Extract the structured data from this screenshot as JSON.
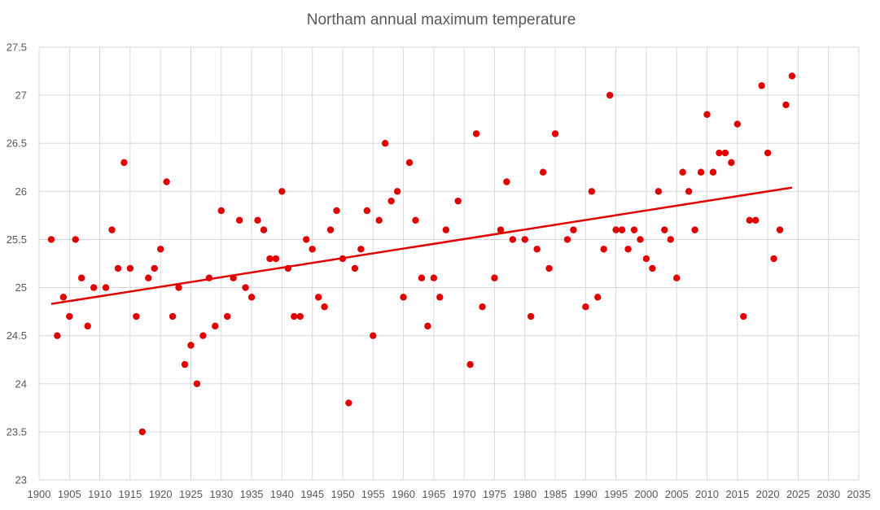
{
  "chart_data": {
    "type": "scatter",
    "title": "Northam annual maximum temperature",
    "xlabel": "",
    "ylabel": "",
    "xlim": [
      1900,
      2035
    ],
    "ylim": [
      23,
      27.5
    ],
    "x_ticks": [
      1900,
      1905,
      1910,
      1915,
      1920,
      1925,
      1930,
      1935,
      1940,
      1945,
      1950,
      1955,
      1960,
      1965,
      1970,
      1975,
      1980,
      1985,
      1990,
      1995,
      2000,
      2005,
      2010,
      2015,
      2020,
      2025,
      2030,
      2035
    ],
    "y_ticks": [
      23,
      23.5,
      24,
      24.5,
      25,
      25.5,
      26,
      26.5,
      27,
      27.5
    ],
    "grid": true,
    "legend": false,
    "point_color": "#e00000",
    "trendline": {
      "type": "linear",
      "color": "#e00000",
      "x": [
        1902,
        2024
      ],
      "y": [
        24.83,
        26.04
      ]
    },
    "series": [
      {
        "x": [
          1902,
          1903,
          1904,
          1905,
          1906,
          1907,
          1908,
          1909,
          1911,
          1912,
          1913,
          1914,
          1915,
          1916,
          1917,
          1918,
          1919,
          1920,
          1921,
          1922,
          1923,
          1924,
          1925,
          1926,
          1927,
          1928,
          1929,
          1930,
          1931,
          1932,
          1933,
          1934,
          1935,
          1936,
          1937,
          1938,
          1939,
          1940,
          1941,
          1942,
          1943,
          1944,
          1945,
          1946,
          1947,
          1948,
          1949,
          1950,
          1951,
          1952,
          1953,
          1954,
          1955,
          1956,
          1957,
          1958,
          1959,
          1960,
          1961,
          1962,
          1963,
          1964,
          1965,
          1966,
          1967,
          1969,
          1971,
          1972,
          1973,
          1975,
          1976,
          1977,
          1978,
          1980,
          1981,
          1982,
          1983,
          1984,
          1985,
          1987,
          1988,
          1990,
          1991,
          1992,
          1993,
          1994,
          1995,
          1996,
          1997,
          1998,
          1999,
          2000,
          2001,
          2002,
          2003,
          2004,
          2005,
          2006,
          2007,
          2008,
          2009,
          2010,
          2011,
          2012,
          2013,
          2014,
          2015,
          2016,
          2017,
          2018,
          2019,
          2020,
          2021,
          2022,
          2023,
          2024
        ],
        "y": [
          25.5,
          24.5,
          24.9,
          24.7,
          25.5,
          25.1,
          24.6,
          25.0,
          25.0,
          25.6,
          25.2,
          26.3,
          25.2,
          24.7,
          23.5,
          25.1,
          25.2,
          25.4,
          26.1,
          24.7,
          25.0,
          24.2,
          24.4,
          24.0,
          24.5,
          25.1,
          24.6,
          25.8,
          24.7,
          25.1,
          25.7,
          25.0,
          24.9,
          25.7,
          25.6,
          25.3,
          25.3,
          26.0,
          25.2,
          24.7,
          24.7,
          25.5,
          25.4,
          24.9,
          24.8,
          25.6,
          25.8,
          25.3,
          23.8,
          25.2,
          25.4,
          25.8,
          24.5,
          25.7,
          26.5,
          25.9,
          26.0,
          24.9,
          26.3,
          25.7,
          25.1,
          24.6,
          25.1,
          24.9,
          25.6,
          25.9,
          24.2,
          26.6,
          24.8,
          25.1,
          25.6,
          26.1,
          25.5,
          25.5,
          24.7,
          25.4,
          26.2,
          25.2,
          26.6,
          25.5,
          25.6,
          24.8,
          26.0,
          24.9,
          25.4,
          27.0,
          25.6,
          25.6,
          25.4,
          25.6,
          25.5,
          25.3,
          25.2,
          26.0,
          25.6,
          25.5,
          25.1,
          26.2,
          26.0,
          25.6,
          26.2,
          26.8,
          26.2,
          26.4,
          26.4,
          26.3,
          26.7,
          24.7,
          25.7,
          25.7,
          27.1,
          26.4,
          25.3,
          25.6,
          26.9,
          27.2
        ]
      }
    ]
  }
}
